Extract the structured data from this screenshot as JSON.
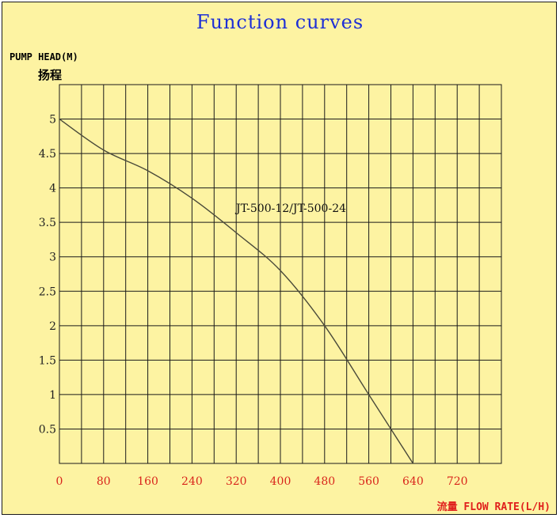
{
  "colors": {
    "background": "#fdf3a2",
    "title": "#1d2fd6",
    "x_ticks": "#d9261c",
    "grid": "#1a1a1a",
    "curve": "#4a4a3a"
  },
  "chart_data": {
    "type": "line",
    "title": "Function curves",
    "ylabel": "PUMP HEAD(M)",
    "ylabel_secondary": "扬程",
    "xlabel": "流量 FLOW RATE(L/H)",
    "xlim": [
      0,
      800
    ],
    "ylim": [
      0,
      5.5
    ],
    "grid": true,
    "x_ticks": [
      0,
      80,
      160,
      240,
      320,
      400,
      480,
      560,
      640,
      720
    ],
    "y_ticks": [
      0.5,
      1,
      1.5,
      2,
      2.5,
      3,
      3.5,
      4,
      4.5,
      5
    ],
    "x_tick_labels": [
      "0",
      "80",
      "160",
      "240",
      "320",
      "400",
      "480",
      "560",
      "640",
      "720"
    ],
    "y_tick_labels": [
      "0.5",
      "1",
      "1.5",
      "2",
      "2.5",
      "3",
      "3.5",
      "4",
      "4.5",
      "5"
    ],
    "series": [
      {
        "name": "JT-500-12/JT-500-24",
        "x": [
          0,
          80,
          160,
          240,
          320,
          400,
          480,
          560,
          640
        ],
        "y": [
          5.0,
          4.55,
          4.25,
          3.85,
          3.35,
          2.8,
          2.0,
          1.0,
          0.0
        ]
      }
    ]
  }
}
